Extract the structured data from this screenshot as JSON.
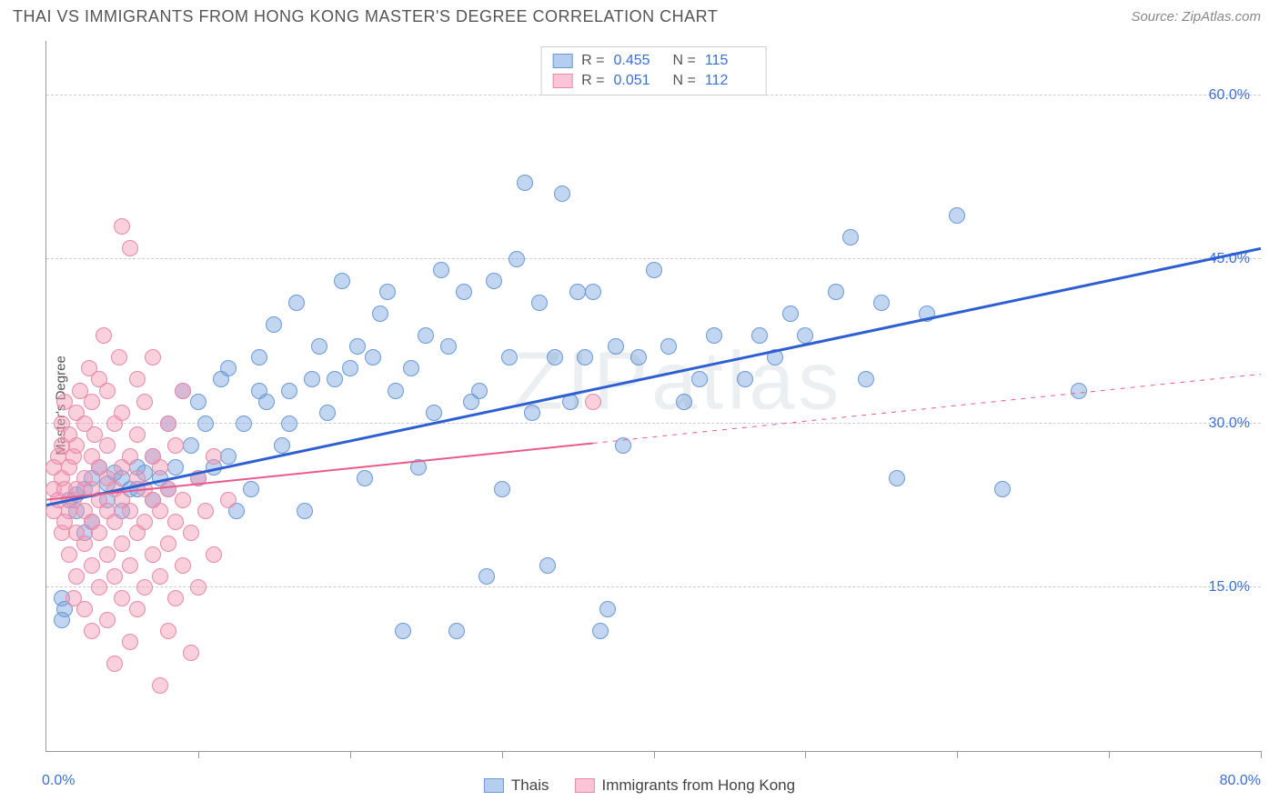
{
  "header": {
    "title": "THAI VS IMMIGRANTS FROM HONG KONG MASTER'S DEGREE CORRELATION CHART",
    "source": "Source: ZipAtlas.com"
  },
  "watermark": "ZIPatlas",
  "chart": {
    "type": "scatter",
    "background_color": "#ffffff",
    "grid_color": "#cccccc",
    "axis_color": "#999999",
    "ylabel": "Master's Degree",
    "ylabel_fontsize": 15,
    "ylabel_color": "#555555",
    "xlim": [
      0,
      80
    ],
    "ylim": [
      0,
      65
    ],
    "xticks": [
      0,
      10,
      20,
      30,
      40,
      50,
      60,
      70,
      80
    ],
    "yticks": [
      15,
      30,
      45,
      60
    ],
    "ytick_labels": [
      "15.0%",
      "30.0%",
      "45.0%",
      "60.0%"
    ],
    "ytick_color": "#3b6fd4",
    "ytick_fontsize": 16,
    "xaxis_min_label": "0.0%",
    "xaxis_max_label": "80.0%",
    "xaxis_label_color": "#3b6fd4",
    "series": [
      {
        "name": "Thais",
        "label": "Thais",
        "fill": "rgba(120,165,225,0.45)",
        "stroke": "#6b99d4",
        "stroke_width": 1,
        "marker_radius": 9,
        "R": "0.455",
        "N": "115",
        "trend": {
          "x1": 0,
          "y1": 22.5,
          "x2": 80,
          "y2": 46,
          "color": "#2d5fd0",
          "width": 3,
          "solid_until_x": 80
        },
        "points": [
          [
            1,
            14
          ],
          [
            1.2,
            13
          ],
          [
            1,
            12
          ],
          [
            1.5,
            23
          ],
          [
            2,
            23.5
          ],
          [
            2,
            22
          ],
          [
            2.5,
            24
          ],
          [
            3,
            25
          ],
          [
            2.5,
            20
          ],
          [
            3,
            21
          ],
          [
            3.5,
            26
          ],
          [
            4,
            23
          ],
          [
            4,
            24.5
          ],
          [
            4.5,
            25.5
          ],
          [
            5,
            25
          ],
          [
            5,
            22
          ],
          [
            5.5,
            24
          ],
          [
            6,
            26
          ],
          [
            6,
            24
          ],
          [
            6.5,
            25.5
          ],
          [
            7,
            23
          ],
          [
            7,
            27
          ],
          [
            7.5,
            25
          ],
          [
            8,
            24
          ],
          [
            8,
            30
          ],
          [
            8.5,
            26
          ],
          [
            9,
            33
          ],
          [
            9.5,
            28
          ],
          [
            10,
            32
          ],
          [
            10,
            25
          ],
          [
            10.5,
            30
          ],
          [
            11,
            26
          ],
          [
            11.5,
            34
          ],
          [
            12,
            27
          ],
          [
            12,
            35
          ],
          [
            12.5,
            22
          ],
          [
            13,
            30
          ],
          [
            13.5,
            24
          ],
          [
            14,
            36
          ],
          [
            14,
            33
          ],
          [
            14.5,
            32
          ],
          [
            15,
            39
          ],
          [
            15.5,
            28
          ],
          [
            16,
            33
          ],
          [
            16,
            30
          ],
          [
            16.5,
            41
          ],
          [
            17,
            22
          ],
          [
            17.5,
            34
          ],
          [
            18,
            37
          ],
          [
            18.5,
            31
          ],
          [
            19,
            34
          ],
          [
            19.5,
            43
          ],
          [
            20,
            35
          ],
          [
            20.5,
            37
          ],
          [
            21,
            25
          ],
          [
            21.5,
            36
          ],
          [
            22,
            40
          ],
          [
            22.5,
            42
          ],
          [
            23,
            33
          ],
          [
            23.5,
            11
          ],
          [
            24,
            35
          ],
          [
            24.5,
            26
          ],
          [
            25,
            38
          ],
          [
            25.5,
            31
          ],
          [
            26,
            44
          ],
          [
            26.5,
            37
          ],
          [
            27,
            11
          ],
          [
            27.5,
            42
          ],
          [
            28,
            32
          ],
          [
            28.5,
            33
          ],
          [
            29,
            16
          ],
          [
            29.5,
            43
          ],
          [
            30,
            24
          ],
          [
            30.5,
            36
          ],
          [
            31,
            45
          ],
          [
            31.5,
            52
          ],
          [
            32,
            31
          ],
          [
            32.5,
            41
          ],
          [
            33,
            17
          ],
          [
            33.5,
            36
          ],
          [
            34,
            51
          ],
          [
            34.5,
            32
          ],
          [
            35,
            42
          ],
          [
            35.5,
            36
          ],
          [
            36,
            42
          ],
          [
            36.5,
            11
          ],
          [
            37,
            13
          ],
          [
            37.5,
            37
          ],
          [
            38,
            28
          ],
          [
            39,
            36
          ],
          [
            40,
            44
          ],
          [
            41,
            37
          ],
          [
            42,
            32
          ],
          [
            43,
            34
          ],
          [
            44,
            38
          ],
          [
            46,
            34
          ],
          [
            47,
            38
          ],
          [
            48,
            36
          ],
          [
            49,
            40
          ],
          [
            50,
            38
          ],
          [
            52,
            42
          ],
          [
            53,
            47
          ],
          [
            54,
            34
          ],
          [
            55,
            41
          ],
          [
            56,
            25
          ],
          [
            58,
            40
          ],
          [
            60,
            49
          ],
          [
            63,
            24
          ],
          [
            68,
            33
          ]
        ]
      },
      {
        "name": "Immigrants from Hong Kong",
        "label": "Immigrants from Hong Kong",
        "fill": "rgba(245,150,180,0.45)",
        "stroke": "#e88aa8",
        "stroke_width": 1,
        "marker_radius": 9,
        "R": "0.051",
        "N": "112",
        "trend": {
          "x1": 0,
          "y1": 23,
          "x2": 80,
          "y2": 34.5,
          "color": "#e85a8a",
          "width": 2,
          "solid_until_x": 36
        },
        "points": [
          [
            0.5,
            22
          ],
          [
            0.5,
            24
          ],
          [
            0.5,
            26
          ],
          [
            0.8,
            23
          ],
          [
            0.8,
            27
          ],
          [
            1,
            20
          ],
          [
            1,
            25
          ],
          [
            1,
            28
          ],
          [
            1,
            30
          ],
          [
            1.2,
            21
          ],
          [
            1.2,
            24
          ],
          [
            1.2,
            32
          ],
          [
            1.5,
            18
          ],
          [
            1.5,
            22
          ],
          [
            1.5,
            26
          ],
          [
            1.5,
            29
          ],
          [
            1.8,
            14
          ],
          [
            1.8,
            23
          ],
          [
            1.8,
            27
          ],
          [
            2,
            16
          ],
          [
            2,
            20
          ],
          [
            2,
            24
          ],
          [
            2,
            28
          ],
          [
            2,
            31
          ],
          [
            2.2,
            33
          ],
          [
            2.5,
            13
          ],
          [
            2.5,
            19
          ],
          [
            2.5,
            22
          ],
          [
            2.5,
            25
          ],
          [
            2.5,
            30
          ],
          [
            2.8,
            35
          ],
          [
            3,
            11
          ],
          [
            3,
            17
          ],
          [
            3,
            21
          ],
          [
            3,
            24
          ],
          [
            3,
            27
          ],
          [
            3,
            32
          ],
          [
            3.2,
            29
          ],
          [
            3.5,
            15
          ],
          [
            3.5,
            20
          ],
          [
            3.5,
            23
          ],
          [
            3.5,
            26
          ],
          [
            3.5,
            34
          ],
          [
            3.8,
            38
          ],
          [
            4,
            12
          ],
          [
            4,
            18
          ],
          [
            4,
            22
          ],
          [
            4,
            25
          ],
          [
            4,
            28
          ],
          [
            4,
            33
          ],
          [
            4.5,
            8
          ],
          [
            4.5,
            16
          ],
          [
            4.5,
            21
          ],
          [
            4.5,
            24
          ],
          [
            4.5,
            30
          ],
          [
            4.8,
            36
          ],
          [
            5,
            14
          ],
          [
            5,
            19
          ],
          [
            5,
            23
          ],
          [
            5,
            26
          ],
          [
            5,
            31
          ],
          [
            5,
            48
          ],
          [
            5.5,
            10
          ],
          [
            5.5,
            17
          ],
          [
            5.5,
            22
          ],
          [
            5.5,
            27
          ],
          [
            5.5,
            46
          ],
          [
            6,
            13
          ],
          [
            6,
            20
          ],
          [
            6,
            25
          ],
          [
            6,
            29
          ],
          [
            6,
            34
          ],
          [
            6.5,
            15
          ],
          [
            6.5,
            21
          ],
          [
            6.5,
            24
          ],
          [
            6.5,
            32
          ],
          [
            7,
            18
          ],
          [
            7,
            23
          ],
          [
            7,
            27
          ],
          [
            7,
            36
          ],
          [
            7.5,
            6
          ],
          [
            7.5,
            16
          ],
          [
            7.5,
            22
          ],
          [
            7.5,
            26
          ],
          [
            8,
            11
          ],
          [
            8,
            19
          ],
          [
            8,
            24
          ],
          [
            8,
            30
          ],
          [
            8.5,
            14
          ],
          [
            8.5,
            21
          ],
          [
            8.5,
            28
          ],
          [
            9,
            17
          ],
          [
            9,
            23
          ],
          [
            9,
            33
          ],
          [
            9.5,
            9
          ],
          [
            9.5,
            20
          ],
          [
            10,
            15
          ],
          [
            10,
            25
          ],
          [
            10.5,
            22
          ],
          [
            11,
            18
          ],
          [
            11,
            27
          ],
          [
            12,
            23
          ],
          [
            36,
            32
          ]
        ]
      }
    ],
    "legend_top": {
      "border_color": "#cccccc",
      "swatch_blue_fill": "rgba(120,165,225,0.55)",
      "swatch_blue_border": "#6b99d4",
      "swatch_pink_fill": "rgba(245,150,180,0.55)",
      "swatch_pink_border": "#e88aa8",
      "r_label": "R =",
      "n_label": "N ="
    },
    "legend_bottom": {
      "items": [
        {
          "label": "Thais",
          "fill": "rgba(120,165,225,0.55)",
          "border": "#6b99d4"
        },
        {
          "label": "Immigrants from Hong Kong",
          "fill": "rgba(245,150,180,0.55)",
          "border": "#e88aa8"
        }
      ]
    }
  }
}
